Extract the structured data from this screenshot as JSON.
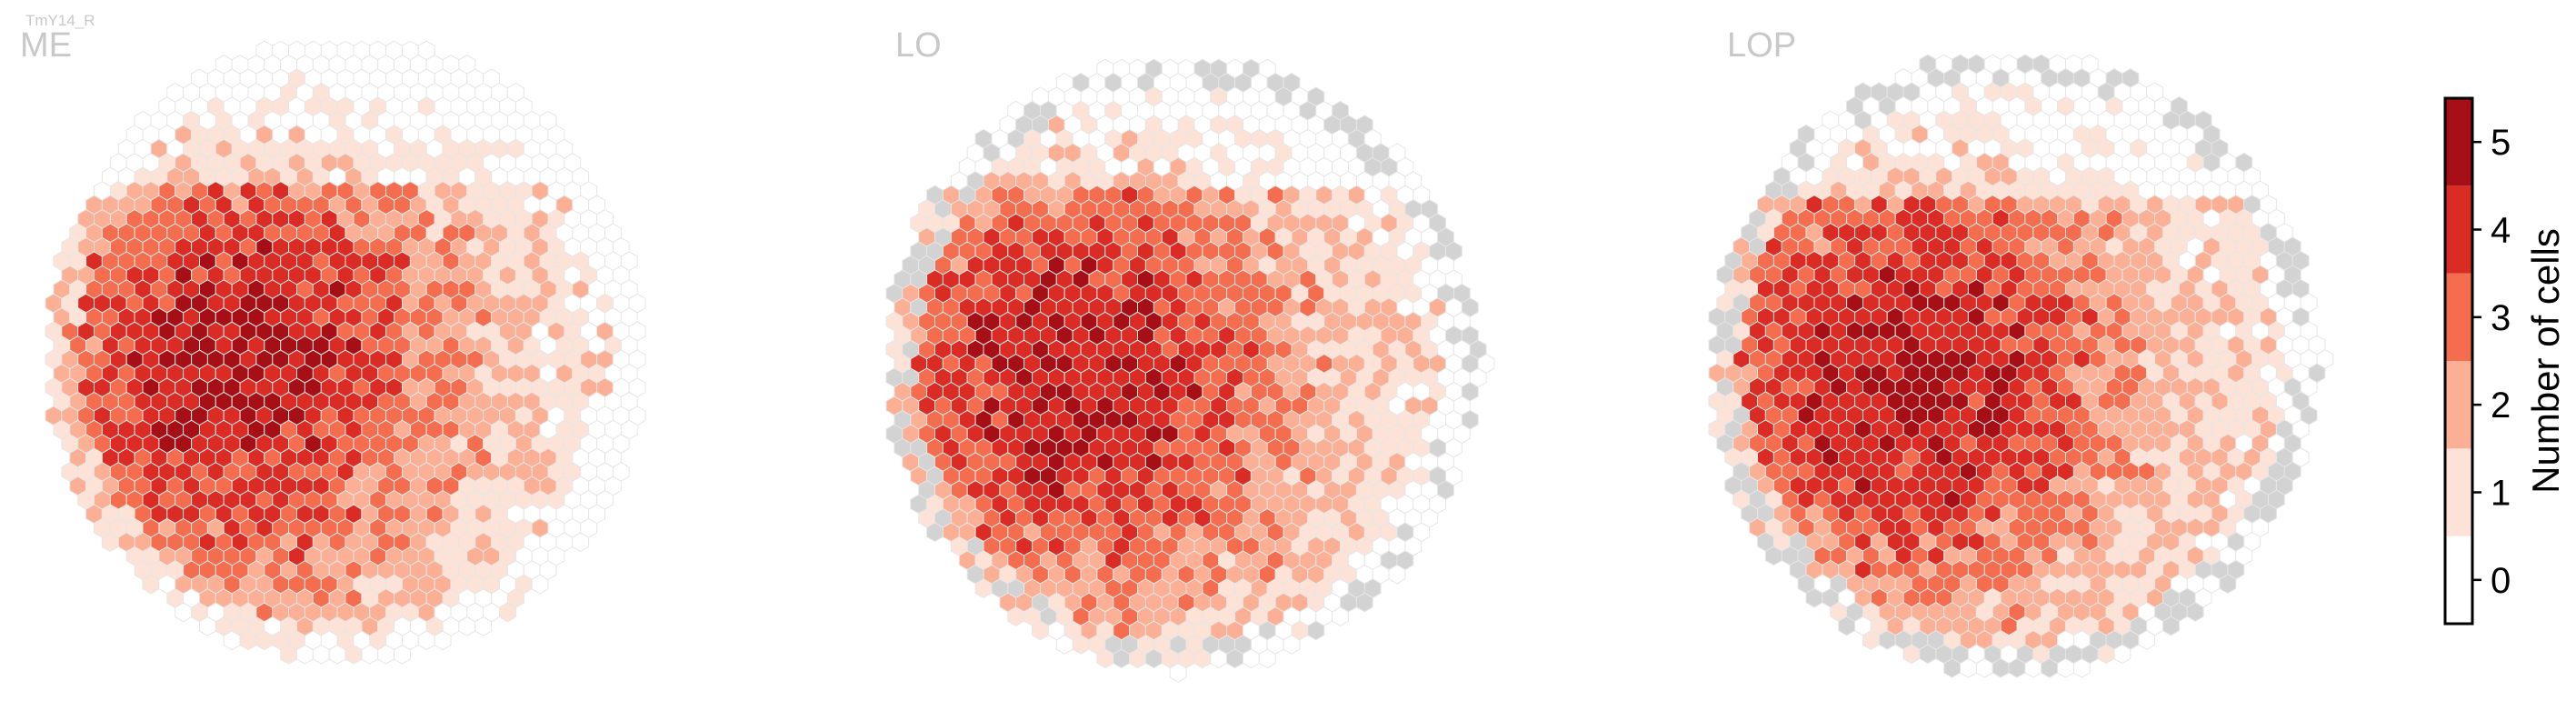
{
  "figure_label": "TmY14_R",
  "chart_data": {
    "type": "heatmap",
    "subtype": "hexagonal",
    "panels": [
      {
        "name": "ME",
        "has_missing_columns": false
      },
      {
        "name": "LO",
        "has_missing_columns": true
      },
      {
        "name": "LOP",
        "has_missing_columns": true
      }
    ],
    "value_levels": [
      0,
      1,
      2,
      3,
      4,
      5
    ],
    "level_colors": [
      "#ffffff",
      "#fde3d7",
      "#fbb095",
      "#f56d4f",
      "#da2c24",
      "#a50f15"
    ],
    "missing_color": "#d3d3d3",
    "colorbar": {
      "ticks": [
        0,
        1,
        2,
        3,
        4,
        5
      ],
      "label": "Number of cells",
      "placement": "right"
    }
  }
}
